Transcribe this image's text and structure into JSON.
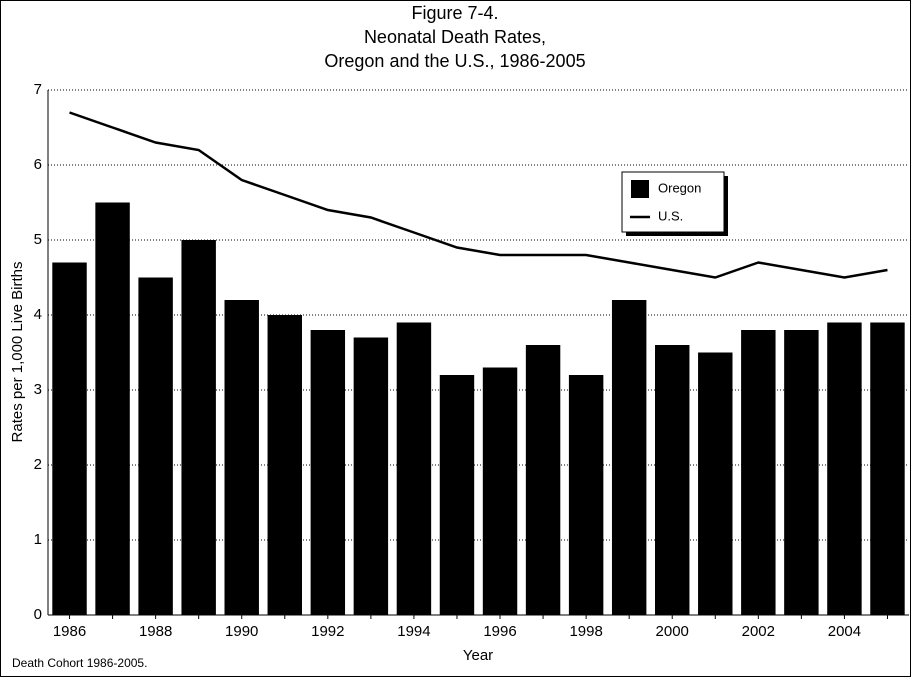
{
  "chart_data": {
    "type": "bar_line",
    "title": [
      "Figure 7-4.",
      "Neonatal Death Rates,",
      "Oregon and the U.S., 1986-2005"
    ],
    "x_label": "Year",
    "y_label": "Rates per 1,000 Live Births",
    "note": "Death Cohort 1986-2005.",
    "categories": [
      "1986",
      null,
      "1988",
      null,
      "1990",
      null,
      "1992",
      null,
      "1994",
      null,
      "1996",
      null,
      "1998",
      null,
      "2000",
      null,
      "2002",
      null,
      "2004",
      null
    ],
    "series": [
      {
        "name": "Oregon",
        "type": "bar",
        "color": "#000000",
        "values": [
          4.7,
          5.5,
          4.5,
          5.0,
          4.2,
          4.0,
          3.8,
          3.7,
          3.9,
          3.2,
          3.3,
          3.6,
          3.2,
          4.2,
          3.6,
          3.5,
          3.8,
          3.8,
          3.9,
          3.9
        ]
      },
      {
        "name": "U.S.",
        "type": "line",
        "color": "#000000",
        "values": [
          6.7,
          6.5,
          6.3,
          6.2,
          5.8,
          5.6,
          5.4,
          5.3,
          5.1,
          4.9,
          4.8,
          4.8,
          4.8,
          4.7,
          4.6,
          4.5,
          4.7,
          4.6,
          4.5,
          4.6
        ]
      }
    ],
    "ylim": [
      0,
      7
    ],
    "yticks": [
      0,
      1,
      2,
      3,
      4,
      5,
      6,
      7
    ],
    "grid": true
  }
}
